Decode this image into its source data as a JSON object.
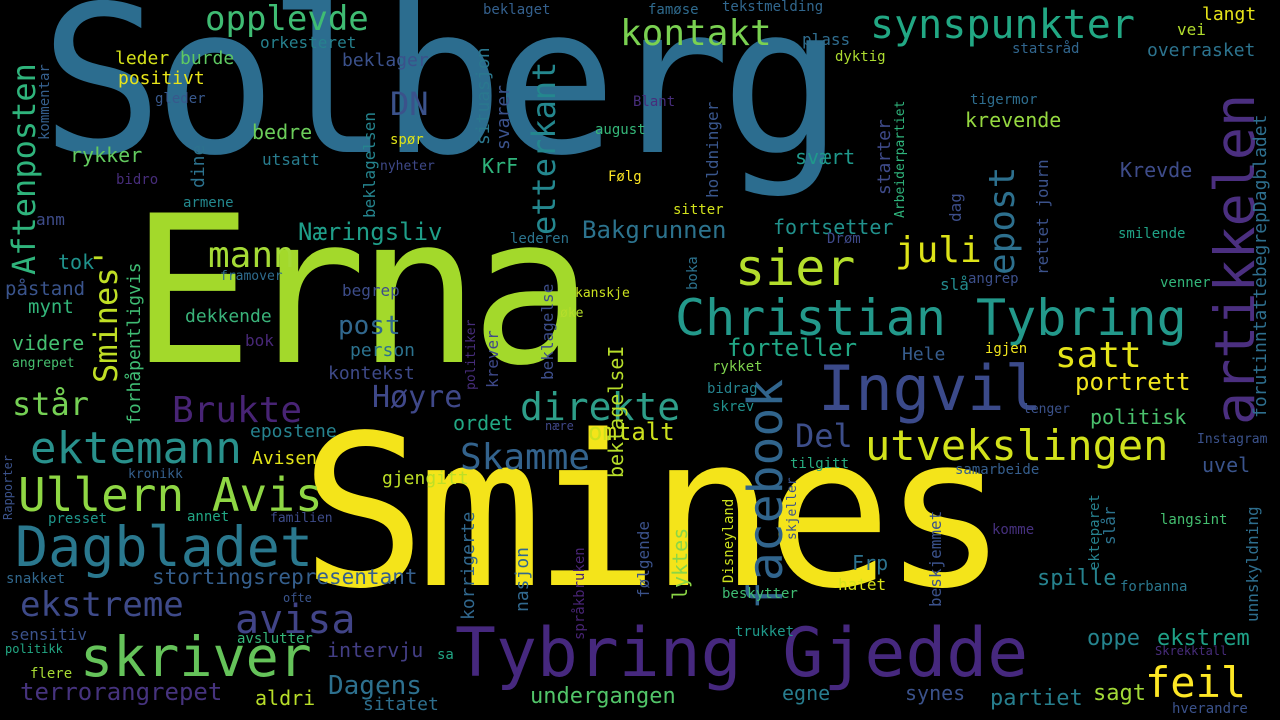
{
  "words": [
    {
      "text": "Solberg",
      "color": "#2c6d8f"
    },
    {
      "text": "Erna",
      "color": "#a3d92b"
    },
    {
      "text": "Smines",
      "color": "#f4e41a"
    },
    {
      "text": "Tybring Gjedde",
      "color": "#46287e"
    },
    {
      "text": "Christian Tybring",
      "color": "#23998b"
    },
    {
      "text": "Ingvil",
      "color": "#3b4a8a"
    },
    {
      "text": "artikkelen",
      "color": "#4b2f80"
    },
    {
      "text": "facebook",
      "color": "#31658d"
    },
    {
      "text": "skriver",
      "color": "#65c35a"
    },
    {
      "text": "Dagbladet",
      "color": "#2a788e"
    },
    {
      "text": "Ullern Avis",
      "color": "#8fd744"
    },
    {
      "text": "utvekslingen",
      "color": "#d2e21b"
    },
    {
      "text": "sier",
      "color": "#b4de2c"
    },
    {
      "text": "synspunkter",
      "color": "#22a884"
    },
    {
      "text": "ektemann",
      "color": "#29918c"
    },
    {
      "text": "feil",
      "color": "#fde725"
    },
    {
      "text": "ekstreme",
      "color": "#3e4a89"
    },
    {
      "text": "avisa",
      "color": "#414487"
    },
    {
      "text": "Aftenposten",
      "color": "#2fb47c"
    },
    {
      "text": "direkte",
      "color": "#2e9e89"
    },
    {
      "text": "Skamme",
      "color": "#33638d"
    },
    {
      "text": "etterkant",
      "color": "#24878e"
    },
    {
      "text": "kontakt",
      "color": "#7ad151"
    },
    {
      "text": "Brukte",
      "color": "#482475"
    },
    {
      "text": "opplevde",
      "color": "#3fbc73"
    },
    {
      "text": "mann",
      "color": "#a5db36"
    },
    {
      "text": "satt",
      "color": "#e5e419"
    },
    {
      "text": "juli",
      "color": "#dde318"
    },
    {
      "text": "epost",
      "color": "#2d708e"
    },
    {
      "text": "Smines'",
      "color": "#c0df25"
    },
    {
      "text": "Høyre",
      "color": "#3f4889"
    },
    {
      "text": "DN",
      "color": "#3b528b"
    },
    {
      "text": "Del",
      "color": "#3d4e8a"
    },
    {
      "text": "står",
      "color": "#75d054"
    },
    {
      "text": "terrorangrepet",
      "color": "#46337e"
    },
    {
      "text": "stortingsrepresentant",
      "color": "#355f8d"
    },
    {
      "text": "Næringsliv",
      "color": "#1f9e89"
    },
    {
      "text": "Bakgrunnen",
      "color": "#2c738e"
    },
    {
      "text": "forteller",
      "color": "#22a785"
    },
    {
      "text": "portrett",
      "color": "#f1e51d"
    },
    {
      "text": "omtalt",
      "color": "#cde11d"
    },
    {
      "text": "post",
      "color": "#31688e"
    },
    {
      "text": "Dagens",
      "color": "#2d708e"
    },
    {
      "text": "undergangen",
      "color": "#52c569"
    },
    {
      "text": "partiet",
      "color": "#277f8e"
    },
    {
      "text": "sagt",
      "color": "#a2da37"
    },
    {
      "text": "politisk",
      "color": "#4ac16d"
    },
    {
      "text": "krevende",
      "color": "#95d840"
    },
    {
      "text": "Krevde",
      "color": "#3e4c8a"
    },
    {
      "text": "svært",
      "color": "#1f988b"
    },
    {
      "text": "fortsetter",
      "color": "#21918c"
    },
    {
      "text": "uvel",
      "color": "#3a548c"
    },
    {
      "text": "spille",
      "color": "#26828e"
    },
    {
      "text": "oppe",
      "color": "#25848e"
    },
    {
      "text": "ekstrem",
      "color": "#1fa187"
    },
    {
      "text": "Frp",
      "color": "#2c728e"
    },
    {
      "text": "hatet",
      "color": "#d8e219"
    },
    {
      "text": "egne",
      "color": "#287d8e"
    },
    {
      "text": "synes",
      "color": "#3b528b"
    },
    {
      "text": "aldri",
      "color": "#b8de29"
    },
    {
      "text": "sitatet",
      "color": "#2e6f8e"
    },
    {
      "text": "intervju",
      "color": "#433e85"
    },
    {
      "text": "epostene",
      "color": "#26828e"
    },
    {
      "text": "Avisen",
      "color": "#e2e418"
    },
    {
      "text": "gjengitt",
      "color": "#bddf26"
    },
    {
      "text": "videre",
      "color": "#44bf70"
    },
    {
      "text": "påstand",
      "color": "#3a548c"
    },
    {
      "text": "mynt",
      "color": "#33b67a"
    },
    {
      "text": "tok",
      "color": "#20928c"
    },
    {
      "text": "anm",
      "color": "#3e4c8a"
    },
    {
      "text": "rykker",
      "color": "#63cb5f"
    },
    {
      "text": "bedre",
      "color": "#6ccd5a"
    },
    {
      "text": "leder",
      "color": "#d5e21a"
    },
    {
      "text": "burde",
      "color": "#5ec962"
    },
    {
      "text": "positivt",
      "color": "#e8e419"
    },
    {
      "text": "orkesteret",
      "color": "#26818e"
    },
    {
      "text": "beklager",
      "color": "#3b518b"
    },
    {
      "text": "dekkende",
      "color": "#3ab37a"
    },
    {
      "text": "begrep",
      "color": "#3d4d8a"
    },
    {
      "text": "person",
      "color": "#2c728e"
    },
    {
      "text": "kontekst",
      "color": "#3e4a89"
    },
    {
      "text": "bok",
      "color": "#482878"
    },
    {
      "text": "plass",
      "color": "#2f6c8e"
    },
    {
      "text": "dyktig",
      "color": "#addc30"
    },
    {
      "text": "vei",
      "color": "#b2dd2d"
    },
    {
      "text": "langt",
      "color": "#e7e419"
    },
    {
      "text": "statsråd",
      "color": "#31668e"
    },
    {
      "text": "overrasket",
      "color": "#2c738e"
    },
    {
      "text": "tigermor",
      "color": "#2e6d8e"
    },
    {
      "text": "tekstmelding",
      "color": "#31678e"
    },
    {
      "text": "famøse",
      "color": "#2f6b8e"
    },
    {
      "text": "beklaget",
      "color": "#34608d"
    },
    {
      "text": "KrF",
      "color": "#2fb47c"
    },
    {
      "text": "august",
      "color": "#35b779"
    },
    {
      "text": "Blant",
      "color": "#472d7b"
    },
    {
      "text": "spør",
      "color": "#e0e318"
    },
    {
      "text": "Følg",
      "color": "#fde725"
    },
    {
      "text": "sitter",
      "color": "#d2e21b"
    },
    {
      "text": "Drøm",
      "color": "#3e4989"
    },
    {
      "text": "lederen",
      "color": "#2b748e"
    },
    {
      "text": "kanskje",
      "color": "#cae11f"
    },
    {
      "text": "øke",
      "color": "#b5de2b"
    },
    {
      "text": "rykket",
      "color": "#7fd34e"
    },
    {
      "text": "bidrag",
      "color": "#25838e"
    },
    {
      "text": "skrev",
      "color": "#21908d"
    },
    {
      "text": "tilgitt",
      "color": "#27ad81"
    },
    {
      "text": "samarbeide",
      "color": "#355e8d"
    },
    {
      "text": "lenger",
      "color": "#3b528b"
    },
    {
      "text": "Instagram",
      "color": "#3b528b"
    },
    {
      "text": "igjen",
      "color": "#f1e51d"
    },
    {
      "text": "Hele",
      "color": "#365c8d"
    },
    {
      "text": "angrep",
      "color": "#3c4f8a"
    },
    {
      "text": "slå",
      "color": "#238a8d"
    },
    {
      "text": "venner",
      "color": "#32b67a"
    },
    {
      "text": "smilende",
      "color": "#20a386"
    },
    {
      "text": "komme",
      "color": "#46307e"
    },
    {
      "text": "langsint",
      "color": "#44bf70"
    },
    {
      "text": "forbanna",
      "color": "#2a778e"
    },
    {
      "text": "Skrekktall",
      "color": "#472c7a"
    },
    {
      "text": "hverandre",
      "color": "#3b528b"
    },
    {
      "text": "trukket",
      "color": "#1f9a8a"
    },
    {
      "text": "beskytter",
      "color": "#3fbc73"
    },
    {
      "text": "sa",
      "color": "#21a685"
    },
    {
      "text": "avslutter",
      "color": "#34b679"
    },
    {
      "text": "ofte",
      "color": "#3a548c"
    },
    {
      "text": "flere",
      "color": "#a8db34"
    },
    {
      "text": "politikk",
      "color": "#22a884"
    },
    {
      "text": "snakket",
      "color": "#31688e"
    },
    {
      "text": "sensitiv",
      "color": "#3b528b"
    },
    {
      "text": "presset",
      "color": "#1f968b"
    },
    {
      "text": "annet",
      "color": "#22a785"
    },
    {
      "text": "familien",
      "color": "#3e4c8a"
    },
    {
      "text": "angrepet",
      "color": "#46c06f"
    },
    {
      "text": "framover",
      "color": "#2f6c8e"
    },
    {
      "text": "kronikk",
      "color": "#35608d"
    },
    {
      "text": "armene",
      "color": "#23888e"
    },
    {
      "text": "gleder",
      "color": "#38588c"
    },
    {
      "text": "bidro",
      "color": "#472d7b"
    },
    {
      "text": "utsatt",
      "color": "#287c8e"
    },
    {
      "text": "nyheter",
      "color": "#3e4989"
    },
    {
      "text": "kommentar",
      "color": "#355f8d"
    },
    {
      "text": "dine",
      "color": "#2c728e"
    },
    {
      "text": "forhåpentligvis",
      "color": "#3fbc73"
    },
    {
      "text": "Rapporter",
      "color": "#3b528b"
    },
    {
      "text": "situasjon",
      "color": "#2a778e"
    },
    {
      "text": "svarer",
      "color": "#3b528b"
    },
    {
      "text": "beklagelsen",
      "color": "#25848e"
    },
    {
      "text": "beklagelse",
      "color": "#3d4e8a"
    },
    {
      "text": "beklagelseI",
      "color": "#b7de2a"
    },
    {
      "text": "holdninger",
      "color": "#39568c"
    },
    {
      "text": "starter",
      "color": "#3e4a89"
    },
    {
      "text": "rettet journ",
      "color": "#3b528b"
    },
    {
      "text": "dag",
      "color": "#3d4e8a"
    },
    {
      "text": "Arbeiderpartiet",
      "color": "#2fb47c"
    },
    {
      "text": "forutinntattebegrepDagbladet",
      "color": "#2e6f8e"
    },
    {
      "text": "unnskyldning",
      "color": "#2e6e8e"
    },
    {
      "text": "ekteparet",
      "color": "#26818e"
    },
    {
      "text": "slår",
      "color": "#2c738e"
    },
    {
      "text": "skjeller",
      "color": "#3b528b"
    },
    {
      "text": "beskjemmet",
      "color": "#3b528b"
    },
    {
      "text": "Disneyland",
      "color": "#cde11d"
    },
    {
      "text": "lyktes",
      "color": "#8bd646"
    },
    {
      "text": "følgende",
      "color": "#3b528b"
    },
    {
      "text": "språkbruken",
      "color": "#482475"
    },
    {
      "text": "nasjon",
      "color": "#31688e"
    },
    {
      "text": "korrigerte",
      "color": "#31688e"
    },
    {
      "text": "krever",
      "color": "#3e4989"
    },
    {
      "text": "politiker",
      "color": "#472d7b"
    },
    {
      "text": "boka",
      "color": "#2c728e"
    },
    {
      "text": "ordet",
      "color": "#22a884"
    },
    {
      "text": "nære",
      "color": "#3f4788"
    }
  ]
}
